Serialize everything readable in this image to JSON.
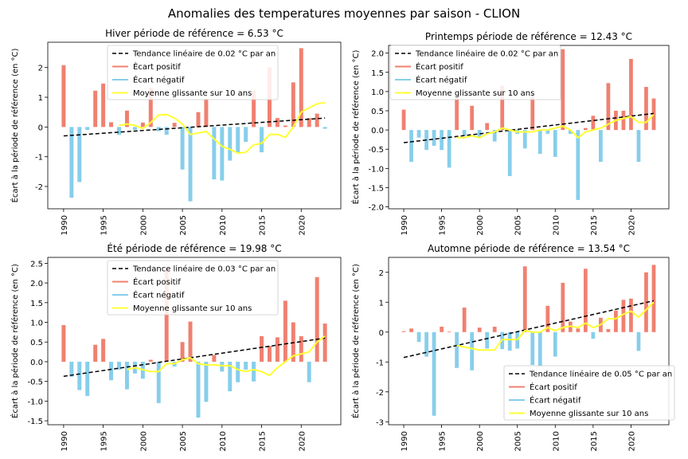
{
  "figure": {
    "title": "Anomalies des temperatures moyennes par saison - CLION"
  },
  "colors": {
    "positive": "#f08070",
    "negative": "#87ceeb",
    "trend": "#000000",
    "moving_average": "#ffff33"
  },
  "chart_data": [
    {
      "type": "bar",
      "title": "Hiver période de référence = 6.53 °C",
      "ylabel": "Écart à la période de référence (en °C)",
      "xlabel": "",
      "x": [
        1990,
        1991,
        1992,
        1993,
        1994,
        1995,
        1996,
        1997,
        1998,
        1999,
        2000,
        2001,
        2002,
        2003,
        2004,
        2005,
        2006,
        2007,
        2008,
        2009,
        2010,
        2011,
        2012,
        2013,
        2014,
        2015,
        2016,
        2017,
        2018,
        2019,
        2020,
        2021,
        2022,
        2023
      ],
      "values": [
        2.08,
        -2.38,
        -1.85,
        -0.1,
        1.22,
        1.46,
        0.16,
        -0.26,
        0.55,
        -0.1,
        0.15,
        1.32,
        -0.14,
        -0.26,
        0.14,
        -1.43,
        -2.5,
        0.5,
        0.95,
        -1.76,
        -1.8,
        -1.13,
        -0.85,
        -0.5,
        1.22,
        -0.85,
        2.01,
        0.3,
        0.05,
        1.5,
        2.65,
        0.3,
        0.45,
        -0.06
      ],
      "moving_average": [
        null,
        null,
        null,
        null,
        null,
        null,
        null,
        0.05,
        0.1,
        0.05,
        -0.05,
        0.15,
        0.4,
        0.42,
        0.3,
        0.1,
        -0.25,
        -0.2,
        -0.15,
        -0.4,
        -0.65,
        -0.75,
        -0.88,
        -0.85,
        -0.6,
        -0.55,
        -0.25,
        -0.25,
        -0.35,
        0.0,
        0.5,
        0.65,
        0.78,
        0.82
      ],
      "trend": {
        "x": [
          1990,
          2023
        ],
        "y": [
          -0.3,
          0.3
        ]
      },
      "ylim": [
        -2.75,
        2.85
      ],
      "xlim": [
        1988,
        2025
      ],
      "yticks": [
        -2,
        -1,
        0,
        1,
        2
      ],
      "xticks": [
        1990,
        1995,
        2000,
        2005,
        2010,
        2015,
        2020
      ],
      "legend_position": "top-center",
      "legend": [
        "Tendance linéaire de 0.02 °C par an",
        "Écart positif",
        "Écart négatif",
        "Moyenne glissante sur 10 ans"
      ]
    },
    {
      "type": "bar",
      "title": "Printemps période de référence = 12.43 °C",
      "ylabel": "Écart à la période de référence (en °C)",
      "xlabel": "",
      "x": [
        1990,
        1991,
        1992,
        1993,
        1994,
        1995,
        1996,
        1997,
        1998,
        1999,
        2000,
        2001,
        2002,
        2003,
        2004,
        2005,
        2006,
        2007,
        2008,
        2009,
        2010,
        2011,
        2012,
        2013,
        2014,
        2015,
        2016,
        2017,
        2018,
        2019,
        2020,
        2021,
        2022,
        2023
      ],
      "values": [
        0.53,
        -0.83,
        -0.2,
        -0.52,
        -0.41,
        -0.52,
        -0.98,
        0.85,
        -0.15,
        0.63,
        -0.21,
        0.18,
        -0.3,
        1.15,
        -1.2,
        -0.1,
        -0.48,
        0.9,
        -0.62,
        -0.1,
        -0.7,
        2.1,
        -0.1,
        -1.82,
        0.05,
        0.37,
        -0.83,
        1.22,
        0.5,
        0.5,
        1.85,
        -0.83,
        1.12,
        0.82
      ],
      "moving_average": [
        null,
        null,
        null,
        null,
        null,
        null,
        null,
        -0.2,
        -0.2,
        -0.15,
        -0.2,
        -0.1,
        -0.05,
        0.05,
        0.0,
        -0.05,
        -0.05,
        -0.05,
        0.0,
        0.0,
        0.05,
        0.1,
        0.0,
        -0.2,
        -0.05,
        0.0,
        0.05,
        0.15,
        0.25,
        0.3,
        0.35,
        0.2,
        0.2,
        0.4
      ],
      "trend": {
        "x": [
          1990,
          2023
        ],
        "y": [
          -0.33,
          0.43
        ]
      },
      "ylim": [
        -2.05,
        2.2
      ],
      "xlim": [
        1988,
        2025
      ],
      "yticks": [
        -2.0,
        -1.5,
        -1.0,
        -0.5,
        0.0,
        0.5,
        1.0,
        1.5,
        2.0
      ],
      "xticks": [
        1990,
        1995,
        2000,
        2005,
        2010,
        2015,
        2020
      ],
      "legend_position": "top-left",
      "legend": [
        "Tendance linéaire de 0.02 °C par an",
        "Écart positif",
        "Écart négatif",
        "Moyenne glissante sur 10 ans"
      ]
    },
    {
      "type": "bar",
      "title": "Été période de référence = 19.98 °C",
      "ylabel": "Écart à la période de référence (en °C)",
      "xlabel": "",
      "x": [
        1990,
        1991,
        1992,
        1993,
        1994,
        1995,
        1996,
        1997,
        1998,
        1999,
        2000,
        2001,
        2002,
        2003,
        2004,
        2005,
        2006,
        2007,
        2008,
        2009,
        2010,
        2011,
        2012,
        2013,
        2014,
        2015,
        2016,
        2017,
        2018,
        2019,
        2020,
        2021,
        2022,
        2023
      ],
      "values": [
        0.93,
        -0.38,
        -0.72,
        -0.87,
        0.43,
        0.58,
        -0.47,
        -0.2,
        -0.7,
        -0.3,
        -0.43,
        0.05,
        -1.05,
        2.38,
        -0.12,
        0.5,
        1.02,
        -1.42,
        -1.02,
        0.17,
        -0.25,
        -0.75,
        -0.52,
        -0.2,
        -0.5,
        0.65,
        0.4,
        0.62,
        1.55,
        1.0,
        0.65,
        -0.52,
        2.15,
        0.97
      ],
      "moving_average": [
        null,
        null,
        null,
        null,
        null,
        null,
        null,
        null,
        -0.2,
        -0.15,
        -0.2,
        -0.25,
        -0.25,
        -0.05,
        -0.05,
        0.05,
        0.1,
        -0.05,
        -0.08,
        -0.08,
        -0.1,
        -0.1,
        -0.2,
        -0.25,
        -0.2,
        -0.25,
        -0.35,
        -0.15,
        0.0,
        0.15,
        0.2,
        0.25,
        0.5,
        0.65
      ],
      "trend": {
        "x": [
          1990,
          2023
        ],
        "y": [
          -0.37,
          0.6
        ]
      },
      "ylim": [
        -1.6,
        2.65
      ],
      "xlim": [
        1988,
        2025
      ],
      "yticks": [
        -1.5,
        -1.0,
        -0.5,
        0.0,
        0.5,
        1.0,
        1.5,
        2.0,
        2.5
      ],
      "xticks": [
        1990,
        1995,
        2000,
        2005,
        2010,
        2015,
        2020
      ],
      "legend_position": "top-center",
      "legend": [
        "Tendance linéaire de 0.03 °C par an",
        "Écart positif",
        "Écart négatif",
        "Moyenne glissante sur 10 ans"
      ]
    },
    {
      "type": "bar",
      "title": "Automne période de référence = 13.54 °C",
      "ylabel": "Écart à la période de référence (en °C)",
      "xlabel": "",
      "x": [
        1990,
        1991,
        1992,
        1993,
        1994,
        1995,
        1996,
        1997,
        1998,
        1999,
        2000,
        2001,
        2002,
        2003,
        2004,
        2005,
        2006,
        2007,
        2008,
        2009,
        2010,
        2011,
        2012,
        2013,
        2014,
        2015,
        2016,
        2017,
        2018,
        2019,
        2020,
        2021,
        2022,
        2023
      ],
      "values": [
        0.03,
        0.12,
        -0.33,
        -0.82,
        -2.8,
        0.18,
        0.02,
        -1.2,
        0.82,
        -1.28,
        0.15,
        -0.55,
        0.18,
        -0.57,
        -0.62,
        -0.55,
        2.2,
        -1.1,
        -1.15,
        0.88,
        -0.82,
        1.65,
        0.35,
        0.12,
        2.12,
        -0.22,
        0.48,
        0.1,
        0.72,
        1.08,
        1.12,
        -0.63,
        2.0,
        2.25
      ],
      "moving_average": [
        null,
        null,
        null,
        null,
        null,
        null,
        null,
        -0.45,
        -0.5,
        -0.55,
        -0.6,
        -0.6,
        -0.6,
        -0.25,
        -0.25,
        -0.25,
        0.05,
        0.0,
        0.0,
        0.15,
        0.05,
        0.15,
        0.2,
        0.15,
        0.3,
        0.15,
        0.25,
        0.45,
        0.45,
        0.6,
        0.7,
        0.5,
        0.75,
        1.0
      ],
      "trend": {
        "x": [
          1990,
          2023
        ],
        "y": [
          -0.85,
          1.05
        ]
      },
      "ylim": [
        -3.1,
        2.5
      ],
      "xlim": [
        1988,
        2025
      ],
      "yticks": [
        -3,
        -2,
        -1,
        0,
        1,
        2
      ],
      "xticks": [
        1990,
        1995,
        2000,
        2005,
        2010,
        2015,
        2020
      ],
      "legend_position": "bottom-right",
      "legend": [
        "Tendance linéaire de 0.05 °C par an",
        "Écart positif",
        "Écart négatif",
        "Moyenne glissante sur 10 ans"
      ]
    }
  ]
}
